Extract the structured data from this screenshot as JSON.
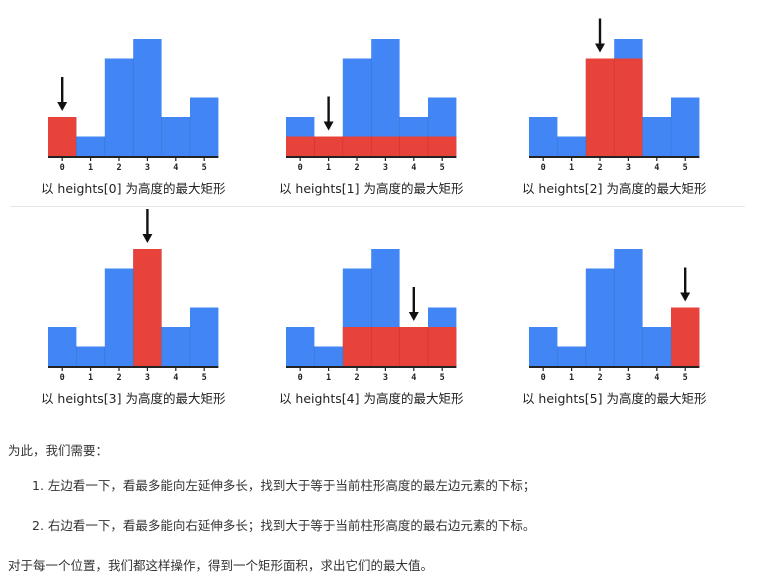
{
  "diagram": {
    "heights": [
      2,
      1,
      5,
      6,
      2,
      3
    ],
    "x_labels": [
      "0",
      "1",
      "2",
      "3",
      "4",
      "5"
    ],
    "colors": {
      "bar": "#4285f4",
      "highlight": "#e8433a",
      "arrow": "#111111"
    },
    "panels": [
      {
        "index": 0,
        "highlight_from": 0,
        "highlight_to": 0,
        "caption": "以 heights[0] 为高度的最大矩形"
      },
      {
        "index": 1,
        "highlight_from": 0,
        "highlight_to": 5,
        "caption": "以 heights[1] 为高度的最大矩形"
      },
      {
        "index": 2,
        "highlight_from": 2,
        "highlight_to": 3,
        "caption": "以 heights[2] 为高度的最大矩形"
      },
      {
        "index": 3,
        "highlight_from": 3,
        "highlight_to": 3,
        "caption": "以 heights[3] 为高度的最大矩形"
      },
      {
        "index": 4,
        "highlight_from": 2,
        "highlight_to": 5,
        "caption": "以 heights[4] 为高度的最大矩形"
      },
      {
        "index": 5,
        "highlight_from": 5,
        "highlight_to": 5,
        "caption": "以 heights[5] 为高度的最大矩形"
      }
    ]
  },
  "text": {
    "intro": "为此，我们需要：",
    "steps": [
      "1. 左边看一下，看最多能向左延伸多长，找到大于等于当前柱形高度的最左边元素的下标；",
      "2. 右边看一下，看最多能向右延伸多长；找到大于等于当前柱形高度的最右边元素的下标。"
    ],
    "conclusion": "对于每一个位置，我们都这样操作，得到一个矩形面积，求出它们的最大值。"
  }
}
